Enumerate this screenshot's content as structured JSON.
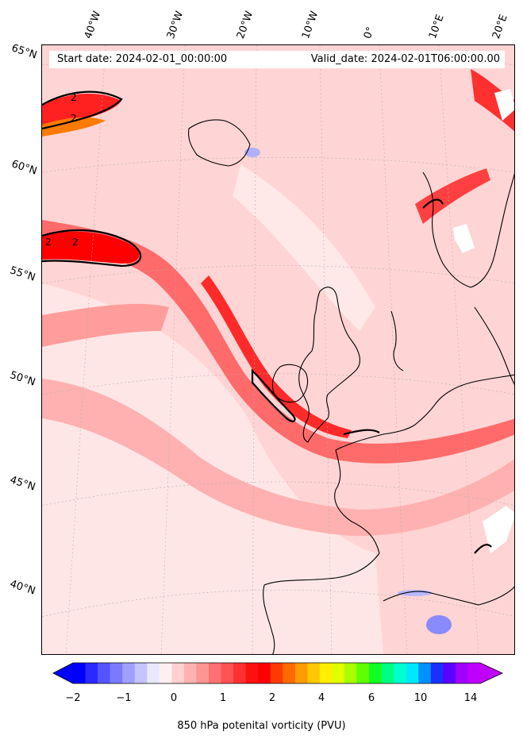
{
  "map": {
    "start_date": "Start date: 2024-02-01_00:00:00",
    "valid_date": "Valid_date: 2024-02-01T06:00:00.00",
    "contour_label": "2",
    "lon_labels": [
      "40°W",
      "30°W",
      "20°W",
      "10°W",
      "0°",
      "10°E",
      "20°E"
    ],
    "lat_labels": [
      "65°N",
      "60°N",
      "55°N",
      "50°N",
      "45°N",
      "40°N"
    ]
  },
  "colorbar": {
    "label": "850 hPa potenital vorticity (PVU)",
    "ticks": [
      "−2",
      "−1",
      "0",
      "1",
      "2",
      "4",
      "6",
      "10",
      "14"
    ],
    "colors": [
      "#0000ff",
      "#2a2aff",
      "#5555ff",
      "#7a7aff",
      "#9f9fff",
      "#c4c4ff",
      "#e8e8ff",
      "#fff0f0",
      "#ffd0d0",
      "#ffb2b2",
      "#ff9494",
      "#ff7070",
      "#ff5252",
      "#ff3030",
      "#ff1010",
      "#ff0000",
      "#ff3a00",
      "#ff6a00",
      "#ff9a00",
      "#ffc800",
      "#ffee00",
      "#e0ff00",
      "#a8ff00",
      "#60ff00",
      "#10ff20",
      "#00ff80",
      "#00ffd0",
      "#00e8ff",
      "#0090ff",
      "#1a30ff",
      "#5a00ff",
      "#a000ff",
      "#c000ff"
    ],
    "under_color": "#0000ff",
    "over_color": "#c000ff"
  }
}
